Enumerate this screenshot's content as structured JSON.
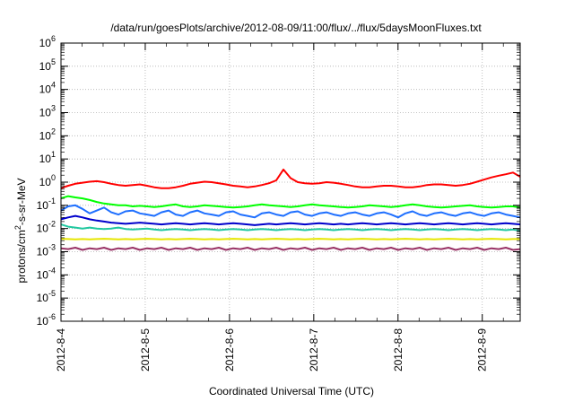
{
  "chart_data": {
    "type": "line",
    "title": "/data/run/goesPlots/archive/2012-08-09/11:00/flux/../flux/5daysMoonFluxes.txt",
    "xlabel": "Coordinated Universal Time (UTC)",
    "ylabel": {
      "pre": "protons/cm",
      "sup": "2",
      "post": "-s-sr-MeV"
    },
    "y_scale": "log",
    "ylim_exp": [
      -6,
      6
    ],
    "y_tick_labels": [
      {
        "base": "10",
        "exp": "-6"
      },
      {
        "base": "10",
        "exp": "-5"
      },
      {
        "base": "10",
        "exp": "-4"
      },
      {
        "base": "10",
        "exp": "-3"
      },
      {
        "base": "10",
        "exp": "-2"
      },
      {
        "base": "10",
        "exp": "-1"
      },
      {
        "base": "10",
        "exp": "0"
      },
      {
        "base": "10",
        "exp": "1"
      },
      {
        "base": "10",
        "exp": "2"
      },
      {
        "base": "10",
        "exp": "3"
      },
      {
        "base": "10",
        "exp": "4"
      },
      {
        "base": "10",
        "exp": "5"
      },
      {
        "base": "10",
        "exp": "6"
      }
    ],
    "x_tick_labels": [
      "2012-8-4",
      "2012-8-5",
      "2012-8-6",
      "2012-8-7",
      "2012-8-8",
      "2012-8-9"
    ],
    "x_range_days": [
      0,
      5.45
    ],
    "grid": true,
    "series": [
      {
        "color": "#ff0000",
        "values": [
          0.55,
          0.7,
          0.85,
          0.95,
          1.05,
          1.1,
          1.0,
          0.85,
          0.75,
          0.7,
          0.75,
          0.8,
          0.7,
          0.6,
          0.55,
          0.55,
          0.6,
          0.7,
          0.85,
          0.95,
          1.05,
          1.0,
          0.9,
          0.8,
          0.7,
          0.65,
          0.6,
          0.65,
          0.75,
          0.9,
          1.2,
          3.5,
          1.5,
          1.0,
          0.9,
          0.85,
          0.9,
          1.0,
          0.95,
          0.85,
          0.75,
          0.65,
          0.6,
          0.6,
          0.65,
          0.7,
          0.7,
          0.65,
          0.6,
          0.6,
          0.65,
          0.75,
          0.8,
          0.8,
          0.75,
          0.7,
          0.75,
          0.85,
          1.05,
          1.3,
          1.6,
          1.9,
          2.2,
          2.6,
          1.7
        ]
      },
      {
        "color": "#00ff00",
        "values": [
          0.2,
          0.25,
          0.22,
          0.2,
          0.17,
          0.14,
          0.12,
          0.11,
          0.1,
          0.1,
          0.09,
          0.095,
          0.09,
          0.085,
          0.09,
          0.1,
          0.11,
          0.09,
          0.085,
          0.09,
          0.1,
          0.095,
          0.09,
          0.085,
          0.08,
          0.085,
          0.09,
          0.1,
          0.11,
          0.1,
          0.095,
          0.09,
          0.085,
          0.09,
          0.1,
          0.11,
          0.1,
          0.095,
          0.09,
          0.085,
          0.08,
          0.085,
          0.09,
          0.1,
          0.095,
          0.09,
          0.085,
          0.09,
          0.1,
          0.11,
          0.1,
          0.09,
          0.085,
          0.08,
          0.085,
          0.09,
          0.095,
          0.1,
          0.09,
          0.085,
          0.08,
          0.085,
          0.09,
          0.09,
          0.08
        ]
      },
      {
        "color": "#1e6fff",
        "values": [
          0.06,
          0.09,
          0.1,
          0.07,
          0.045,
          0.06,
          0.08,
          0.05,
          0.04,
          0.055,
          0.06,
          0.045,
          0.04,
          0.035,
          0.05,
          0.06,
          0.04,
          0.035,
          0.05,
          0.06,
          0.045,
          0.04,
          0.035,
          0.05,
          0.055,
          0.04,
          0.035,
          0.03,
          0.045,
          0.05,
          0.04,
          0.035,
          0.05,
          0.055,
          0.04,
          0.035,
          0.045,
          0.05,
          0.04,
          0.035,
          0.045,
          0.05,
          0.04,
          0.035,
          0.045,
          0.05,
          0.04,
          0.03,
          0.045,
          0.055,
          0.04,
          0.035,
          0.045,
          0.05,
          0.04,
          0.035,
          0.045,
          0.05,
          0.04,
          0.035,
          0.045,
          0.05,
          0.04,
          0.035,
          0.03
        ]
      },
      {
        "color": "#0000cc",
        "values": [
          0.025,
          0.03,
          0.035,
          0.03,
          0.025,
          0.022,
          0.02,
          0.018,
          0.017,
          0.016,
          0.017,
          0.018,
          0.017,
          0.016,
          0.015,
          0.016,
          0.017,
          0.016,
          0.015,
          0.016,
          0.017,
          0.016,
          0.015,
          0.016,
          0.017,
          0.016,
          0.015,
          0.014,
          0.015,
          0.016,
          0.015,
          0.016,
          0.017,
          0.016,
          0.015,
          0.016,
          0.017,
          0.016,
          0.015,
          0.016,
          0.015,
          0.016,
          0.017,
          0.016,
          0.015,
          0.016,
          0.017,
          0.016,
          0.015,
          0.016,
          0.017,
          0.016,
          0.015,
          0.016,
          0.017,
          0.016,
          0.015,
          0.016,
          0.017,
          0.016,
          0.015,
          0.016,
          0.017,
          0.016,
          0.015
        ]
      },
      {
        "color": "#20c8a0",
        "values": [
          0.015,
          0.012,
          0.011,
          0.01,
          0.011,
          0.01,
          0.0095,
          0.01,
          0.011,
          0.0095,
          0.009,
          0.0095,
          0.01,
          0.009,
          0.0085,
          0.009,
          0.0095,
          0.009,
          0.0085,
          0.009,
          0.0095,
          0.009,
          0.0085,
          0.009,
          0.0095,
          0.009,
          0.0085,
          0.009,
          0.0095,
          0.009,
          0.0085,
          0.009,
          0.0095,
          0.009,
          0.0085,
          0.009,
          0.0095,
          0.009,
          0.0085,
          0.009,
          0.0095,
          0.009,
          0.0085,
          0.009,
          0.0095,
          0.009,
          0.0085,
          0.009,
          0.0095,
          0.009,
          0.0085,
          0.009,
          0.0095,
          0.009,
          0.0085,
          0.009,
          0.0095,
          0.009,
          0.0085,
          0.009,
          0.0095,
          0.009,
          0.0085,
          0.009,
          0.008
        ]
      },
      {
        "color": "#e6e600",
        "values": [
          0.0036,
          0.0035,
          0.0034,
          0.0035,
          0.0034,
          0.0035,
          0.0036,
          0.0035,
          0.0034,
          0.0035,
          0.0034,
          0.0035,
          0.0036,
          0.0035,
          0.0034,
          0.0035,
          0.0034,
          0.0035,
          0.0036,
          0.0035,
          0.0034,
          0.0035,
          0.0034,
          0.0035,
          0.0036,
          0.0035,
          0.0034,
          0.0035,
          0.0034,
          0.0035,
          0.0036,
          0.0035,
          0.0034,
          0.0035,
          0.0034,
          0.0035,
          0.0036,
          0.0035,
          0.0034,
          0.0035,
          0.0034,
          0.0035,
          0.0036,
          0.0035,
          0.0034,
          0.0035,
          0.0034,
          0.0035,
          0.0036,
          0.0035,
          0.0034,
          0.0035,
          0.0034,
          0.0035,
          0.0036,
          0.0035,
          0.0034,
          0.0035,
          0.0034,
          0.0035,
          0.0036,
          0.0035,
          0.0034,
          0.0035,
          0.0035
        ]
      },
      {
        "color": "#993366",
        "values": [
          0.0014,
          0.0013,
          0.0015,
          0.0012,
          0.0014,
          0.0013,
          0.0015,
          0.0012,
          0.0014,
          0.0013,
          0.0015,
          0.0012,
          0.0014,
          0.0013,
          0.0015,
          0.0012,
          0.0014,
          0.0013,
          0.0015,
          0.0012,
          0.0014,
          0.0013,
          0.0015,
          0.0012,
          0.0014,
          0.0013,
          0.0015,
          0.0012,
          0.0014,
          0.0013,
          0.0015,
          0.0012,
          0.0014,
          0.0013,
          0.0015,
          0.0012,
          0.0014,
          0.0013,
          0.0015,
          0.0012,
          0.0014,
          0.0013,
          0.0015,
          0.0012,
          0.0014,
          0.0013,
          0.0015,
          0.0012,
          0.0014,
          0.0013,
          0.0015,
          0.0012,
          0.0014,
          0.0013,
          0.0015,
          0.0012,
          0.0014,
          0.0013,
          0.0015,
          0.0012,
          0.0014,
          0.0013,
          0.0015,
          0.0012,
          0.0013
        ]
      }
    ]
  }
}
